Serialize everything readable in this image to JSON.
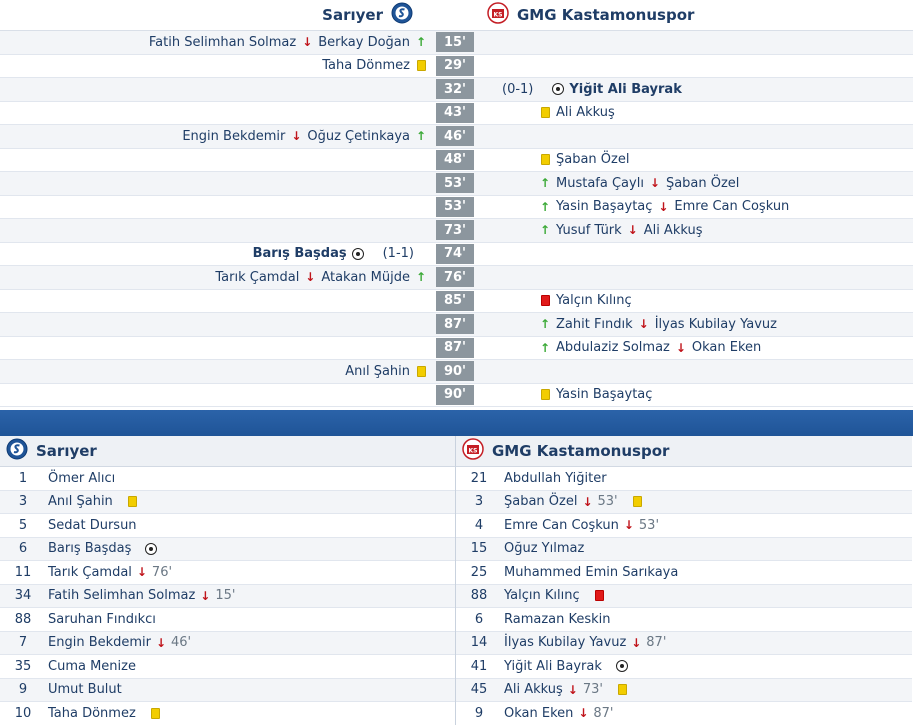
{
  "home_team": "Sarıyer",
  "away_team": "GMG Kastamonuspor",
  "colors": {
    "divider": "#1f5497",
    "minute_badge": "#8c969e",
    "sub_in": "#3aa936",
    "sub_out": "#c0141b",
    "yellow": "#f2cd00",
    "red": "#e11a1a"
  },
  "events": [
    {
      "minute": "15'",
      "side": "home",
      "type": "sub",
      "out": "Fatih Selimhan Solmaz",
      "in": "Berkay Doğan"
    },
    {
      "minute": "29'",
      "side": "home",
      "type": "yellow",
      "player": "Taha Dönmez"
    },
    {
      "minute": "32'",
      "side": "away",
      "type": "goal",
      "player": "Yiğit Ali Bayrak",
      "score": "(0-1)"
    },
    {
      "minute": "43'",
      "side": "away",
      "type": "yellow",
      "player": "Ali Akkuş"
    },
    {
      "minute": "46'",
      "side": "home",
      "type": "sub",
      "out": "Engin Bekdemir",
      "in": "Oğuz Çetinkaya"
    },
    {
      "minute": "48'",
      "side": "away",
      "type": "yellow",
      "player": "Şaban Özel"
    },
    {
      "minute": "53'",
      "side": "away",
      "type": "sub",
      "in": "Mustafa Çaylı",
      "out": "Şaban Özel"
    },
    {
      "minute": "53'",
      "side": "away",
      "type": "sub",
      "in": "Yasin Başaytaç",
      "out": "Emre Can Coşkun"
    },
    {
      "minute": "73'",
      "side": "away",
      "type": "sub",
      "in": "Yusuf Türk",
      "out": "Ali Akkuş"
    },
    {
      "minute": "74'",
      "side": "home",
      "type": "goal",
      "player": "Barış Başdaş",
      "score": "(1-1)"
    },
    {
      "minute": "76'",
      "side": "home",
      "type": "sub",
      "out": "Tarık Çamdal",
      "in": "Atakan Müjde"
    },
    {
      "minute": "85'",
      "side": "away",
      "type": "red",
      "player": "Yalçın Kılınç"
    },
    {
      "minute": "87'",
      "side": "away",
      "type": "sub",
      "in": "Zahit Fındık",
      "out": "İlyas Kubilay Yavuz"
    },
    {
      "minute": "87'",
      "side": "away",
      "type": "sub",
      "in": "Abdulaziz Solmaz",
      "out": "Okan Eken"
    },
    {
      "minute": "90'",
      "side": "home",
      "type": "yellow",
      "player": "Anıl Şahin"
    },
    {
      "minute": "90'",
      "side": "away",
      "type": "yellow",
      "player": "Yasin Başaytaç"
    }
  ],
  "lineup_home": [
    {
      "num": "1",
      "name": "Ömer Alıcı"
    },
    {
      "num": "3",
      "name": "Anıl Şahin",
      "yellow": true
    },
    {
      "num": "5",
      "name": "Sedat Dursun"
    },
    {
      "num": "6",
      "name": "Barış Başdaş",
      "goal": true
    },
    {
      "num": "11",
      "name": "Tarık Çamdal",
      "out_min": "76'"
    },
    {
      "num": "34",
      "name": "Fatih Selimhan Solmaz",
      "out_min": "15'"
    },
    {
      "num": "88",
      "name": "Saruhan Fındıkcı"
    },
    {
      "num": "7",
      "name": "Engin Bekdemir",
      "out_min": "46'"
    },
    {
      "num": "35",
      "name": "Cuma Menize"
    },
    {
      "num": "9",
      "name": "Umut Bulut"
    },
    {
      "num": "10",
      "name": "Taha Dönmez",
      "yellow": true
    }
  ],
  "lineup_away": [
    {
      "num": "21",
      "name": "Abdullah Yiğiter"
    },
    {
      "num": "3",
      "name": "Şaban Özel",
      "out_min": "53'",
      "yellow": true
    },
    {
      "num": "4",
      "name": "Emre Can Coşkun",
      "out_min": "53'"
    },
    {
      "num": "15",
      "name": "Oğuz Yılmaz"
    },
    {
      "num": "25",
      "name": "Muhammed Emin Sarıkaya"
    },
    {
      "num": "88",
      "name": "Yalçın Kılınç",
      "red": true
    },
    {
      "num": "6",
      "name": "Ramazan Keskin"
    },
    {
      "num": "14",
      "name": "İlyas Kubilay Yavuz",
      "out_min": "87'"
    },
    {
      "num": "41",
      "name": "Yiğit Ali Bayrak",
      "goal": true
    },
    {
      "num": "45",
      "name": "Ali Akkuş",
      "out_min": "73'",
      "yellow": true
    },
    {
      "num": "9",
      "name": "Okan Eken",
      "out_min": "87'"
    }
  ],
  "icons": {
    "home_crest": "sariyer-crest-icon",
    "away_crest": "kastamonuspor-crest-icon",
    "goal": "football-icon",
    "yellow": "yellow-card-icon",
    "red": "red-card-icon",
    "sub_in": "arrow-up-icon",
    "sub_out": "arrow-down-icon"
  }
}
